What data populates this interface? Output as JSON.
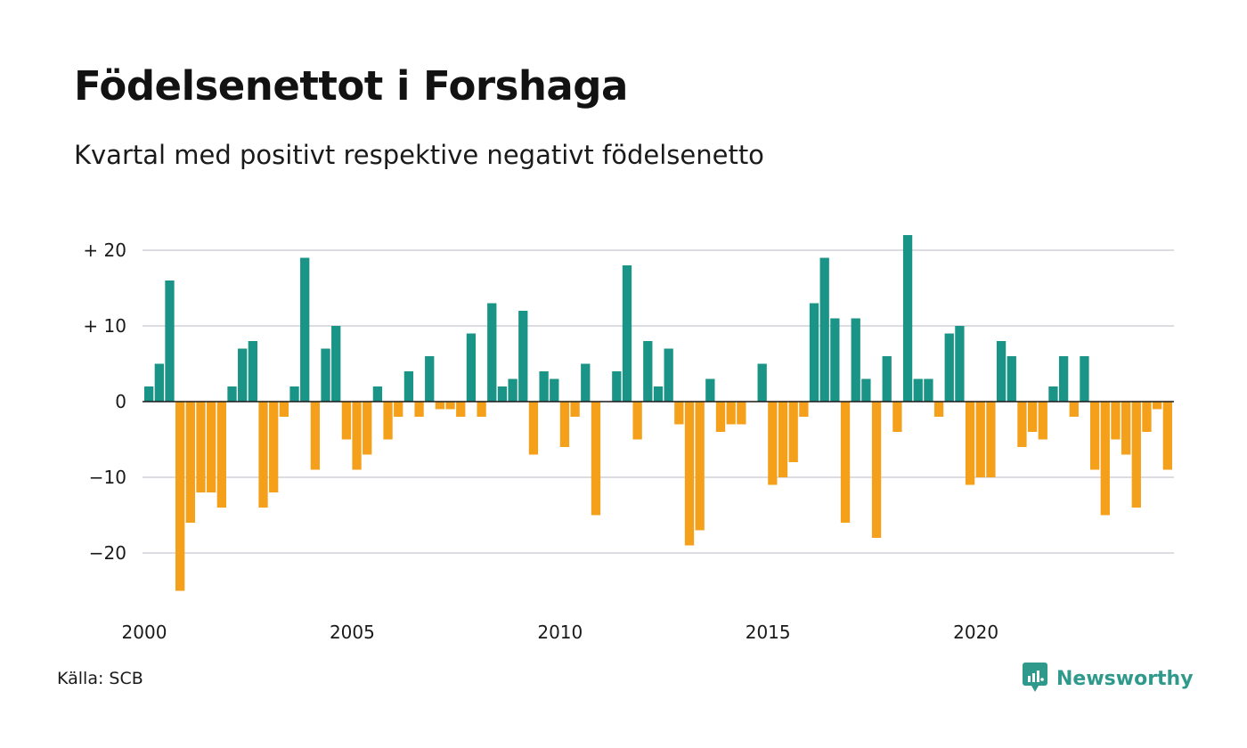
{
  "title": "Födelsenettot i Forshaga",
  "subtitle": "Kvartal med positivt respektive negativt födelsenetto",
  "source": "Källa: SCB",
  "brand": "Newsworthy",
  "colors": {
    "positive": "#1a9486",
    "negative": "#f5a01a",
    "grid": "#dcdce2",
    "zero_line": "#1a1a1a",
    "brand": "#2f9a8b"
  },
  "chart_data": {
    "type": "bar",
    "title": "Födelsenettot i Forshaga",
    "subtitle": "Kvartal med positivt respektive negativt födelsenetto",
    "start_year": 2000,
    "x_tick_labels": [
      "2000",
      "2005",
      "2010",
      "2015",
      "2020"
    ],
    "y_ticks": [
      {
        "value": 20,
        "label": "+ 20"
      },
      {
        "value": 10,
        "label": "+ 10"
      },
      {
        "value": 0,
        "label": "0"
      },
      {
        "value": -10,
        "label": "−10"
      },
      {
        "value": -20,
        "label": "−20"
      }
    ],
    "ylim": [
      -27,
      23
    ],
    "grid": true,
    "quarters": [
      {
        "x": "2000 Q1",
        "value": 2
      },
      {
        "x": "2000 Q2",
        "value": 5
      },
      {
        "x": "2000 Q3",
        "value": 16
      },
      {
        "x": "2000 Q4",
        "value": -25
      },
      {
        "x": "2001 Q1",
        "value": -16
      },
      {
        "x": "2001 Q2",
        "value": -12
      },
      {
        "x": "2001 Q3",
        "value": -12
      },
      {
        "x": "2001 Q4",
        "value": -14
      },
      {
        "x": "2002 Q1",
        "value": 2
      },
      {
        "x": "2002 Q2",
        "value": 7
      },
      {
        "x": "2002 Q3",
        "value": 8
      },
      {
        "x": "2002 Q4",
        "value": -14
      },
      {
        "x": "2003 Q1",
        "value": -12
      },
      {
        "x": "2003 Q2",
        "value": -2
      },
      {
        "x": "2003 Q3",
        "value": 2
      },
      {
        "x": "2003 Q4",
        "value": 19
      },
      {
        "x": "2004 Q1",
        "value": -9
      },
      {
        "x": "2004 Q2",
        "value": 7
      },
      {
        "x": "2004 Q3",
        "value": 10
      },
      {
        "x": "2004 Q4",
        "value": -5
      },
      {
        "x": "2005 Q1",
        "value": -9
      },
      {
        "x": "2005 Q2",
        "value": -7
      },
      {
        "x": "2005 Q3",
        "value": 2
      },
      {
        "x": "2005 Q4",
        "value": -5
      },
      {
        "x": "2006 Q1",
        "value": -2
      },
      {
        "x": "2006 Q2",
        "value": 4
      },
      {
        "x": "2006 Q3",
        "value": -2
      },
      {
        "x": "2006 Q4",
        "value": 6
      },
      {
        "x": "2007 Q1",
        "value": -1
      },
      {
        "x": "2007 Q2",
        "value": -1
      },
      {
        "x": "2007 Q3",
        "value": -2
      },
      {
        "x": "2007 Q4",
        "value": 9
      },
      {
        "x": "2008 Q1",
        "value": -2
      },
      {
        "x": "2008 Q2",
        "value": 13
      },
      {
        "x": "2008 Q3",
        "value": 2
      },
      {
        "x": "2008 Q4",
        "value": 3
      },
      {
        "x": "2009 Q1",
        "value": 12
      },
      {
        "x": "2009 Q2",
        "value": -7
      },
      {
        "x": "2009 Q3",
        "value": 4
      },
      {
        "x": "2009 Q4",
        "value": 3
      },
      {
        "x": "2010 Q1",
        "value": -6
      },
      {
        "x": "2010 Q2",
        "value": -2
      },
      {
        "x": "2010 Q3",
        "value": 5
      },
      {
        "x": "2010 Q4",
        "value": -15
      },
      {
        "x": "2011 Q1",
        "value": 0
      },
      {
        "x": "2011 Q2",
        "value": 4
      },
      {
        "x": "2011 Q3",
        "value": 18
      },
      {
        "x": "2011 Q4",
        "value": -5
      },
      {
        "x": "2012 Q1",
        "value": 8
      },
      {
        "x": "2012 Q2",
        "value": 2
      },
      {
        "x": "2012 Q3",
        "value": 7
      },
      {
        "x": "2012 Q4",
        "value": -3
      },
      {
        "x": "2013 Q1",
        "value": -19
      },
      {
        "x": "2013 Q2",
        "value": -17
      },
      {
        "x": "2013 Q3",
        "value": 3
      },
      {
        "x": "2013 Q4",
        "value": -4
      },
      {
        "x": "2014 Q1",
        "value": -3
      },
      {
        "x": "2014 Q2",
        "value": -3
      },
      {
        "x": "2014 Q3",
        "value": 0
      },
      {
        "x": "2014 Q4",
        "value": 5
      },
      {
        "x": "2015 Q1",
        "value": -11
      },
      {
        "x": "2015 Q2",
        "value": -10
      },
      {
        "x": "2015 Q3",
        "value": -8
      },
      {
        "x": "2015 Q4",
        "value": -2
      },
      {
        "x": "2016 Q1",
        "value": 13
      },
      {
        "x": "2016 Q2",
        "value": 19
      },
      {
        "x": "2016 Q3",
        "value": 11
      },
      {
        "x": "2016 Q4",
        "value": -16
      },
      {
        "x": "2017 Q1",
        "value": 11
      },
      {
        "x": "2017 Q2",
        "value": 3
      },
      {
        "x": "2017 Q3",
        "value": -18
      },
      {
        "x": "2017 Q4",
        "value": 6
      },
      {
        "x": "2018 Q1",
        "value": -4
      },
      {
        "x": "2018 Q2",
        "value": 22
      },
      {
        "x": "2018 Q3",
        "value": 3
      },
      {
        "x": "2018 Q4",
        "value": 3
      },
      {
        "x": "2019 Q1",
        "value": -2
      },
      {
        "x": "2019 Q2",
        "value": 9
      },
      {
        "x": "2019 Q3",
        "value": 10
      },
      {
        "x": "2019 Q4",
        "value": -11
      },
      {
        "x": "2020 Q1",
        "value": -10
      },
      {
        "x": "2020 Q2",
        "value": -10
      },
      {
        "x": "2020 Q3",
        "value": 8
      },
      {
        "x": "2020 Q4",
        "value": 6
      },
      {
        "x": "2021 Q1",
        "value": -6
      },
      {
        "x": "2021 Q2",
        "value": -4
      },
      {
        "x": "2021 Q3",
        "value": -5
      },
      {
        "x": "2021 Q4",
        "value": 2
      },
      {
        "x": "2022 Q1",
        "value": 6
      },
      {
        "x": "2022 Q2",
        "value": -2
      },
      {
        "x": "2022 Q3",
        "value": 6
      },
      {
        "x": "2022 Q4",
        "value": -9
      },
      {
        "x": "2023 Q1",
        "value": -15
      },
      {
        "x": "2023 Q2",
        "value": -5
      },
      {
        "x": "2023 Q3",
        "value": -7
      },
      {
        "x": "2023 Q4",
        "value": -14
      },
      {
        "x": "2024 Q1",
        "value": -4
      },
      {
        "x": "2024 Q2",
        "value": -1
      },
      {
        "x": "2024 Q3",
        "value": -9
      }
    ]
  }
}
